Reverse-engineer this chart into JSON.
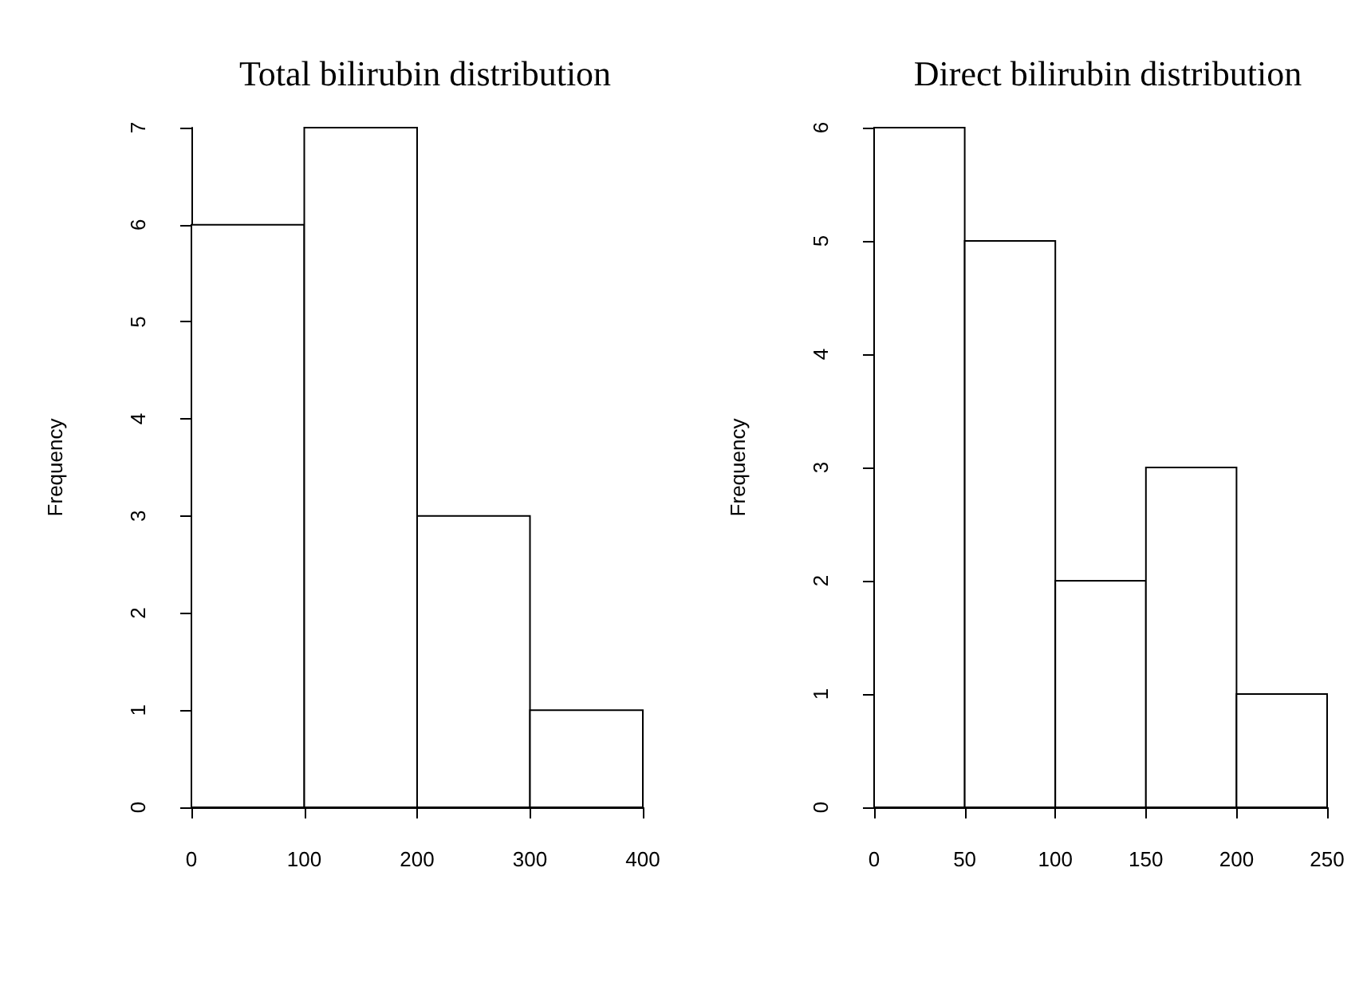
{
  "chart_data": [
    {
      "type": "histogram",
      "title": "Total bilirubin distribution",
      "ylabel": "Frequency",
      "bins": [
        0,
        100,
        200,
        300,
        400
      ],
      "values": [
        6,
        7,
        3,
        1
      ],
      "color": "#ffffff",
      "xlim": [
        0,
        400
      ],
      "xticks": [
        0,
        100,
        200,
        300,
        400
      ],
      "ylim": [
        0,
        7
      ],
      "yticks": [
        0,
        1,
        2,
        3,
        4,
        5,
        6,
        7
      ],
      "grid": false
    },
    {
      "type": "histogram",
      "title": "Direct bilirubin distribution",
      "ylabel": "Frequency",
      "bins": [
        0,
        50,
        100,
        150,
        200,
        250
      ],
      "values": [
        6,
        5,
        2,
        3,
        1
      ],
      "color": "#ffffff",
      "xlim": [
        0,
        250
      ],
      "xticks": [
        0,
        50,
        100,
        150,
        200,
        250
      ],
      "ylim": [
        0,
        6
      ],
      "yticks": [
        0,
        1,
        2,
        3,
        4,
        5,
        6
      ],
      "grid": false
    }
  ]
}
